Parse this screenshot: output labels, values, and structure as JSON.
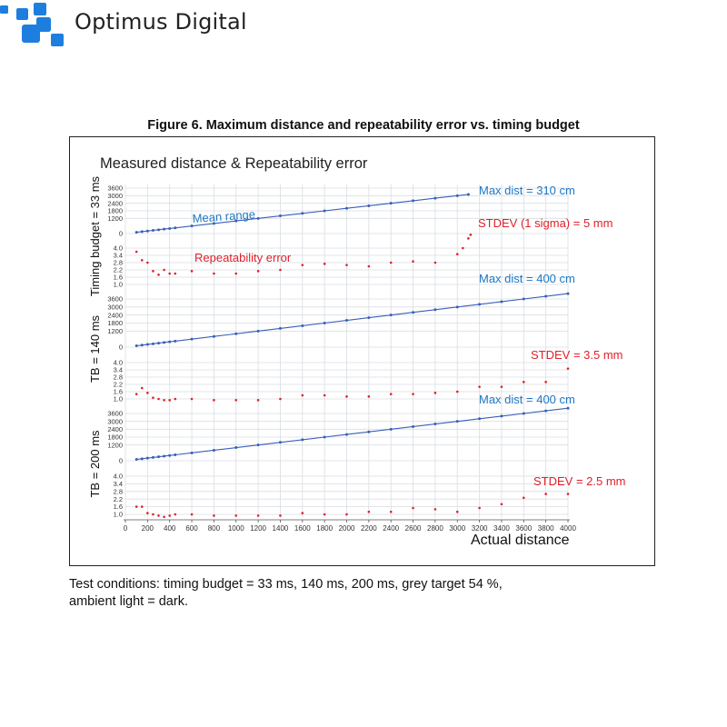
{
  "brand": {
    "name": "Optimus Digital",
    "color": "#1e7ee0"
  },
  "figure": {
    "caption": "Figure 6. Maximum distance and repeatability error vs. timing budget",
    "notes": [
      "Test conditions: timing budget = 33 ms, 140 ms, 200 ms, grey target 54 %,",
      "ambient light = dark."
    ]
  },
  "chart_data": {
    "type": "scatter",
    "title": "Measured distance & Repeatability error",
    "xlabel": "Actual distance",
    "x_ticks": [
      0,
      200,
      400,
      600,
      800,
      1000,
      1200,
      1400,
      1600,
      1800,
      2000,
      2200,
      2400,
      2600,
      2800,
      3000,
      3200,
      3400,
      3600,
      3800,
      4000
    ],
    "xlim": [
      0,
      4000
    ],
    "grid": true,
    "colors": {
      "mean": "#1f77c4",
      "error": "#e0202a",
      "line": "#3a5fb8"
    },
    "panels": [
      {
        "ylabel": "Timing budget = 33 ms",
        "range_ticks": [
          "3600",
          "3000",
          "2400",
          "1800",
          "1200",
          "0"
        ],
        "error_ticks": [
          "4.0",
          "3.4",
          "2.8",
          "2.2",
          "1.6",
          "1.0"
        ],
        "annotations": {
          "max": "Max dist = 310 cm",
          "stdev": "STDEV (1 sigma) = 5 mm",
          "mean_label": "Mean range",
          "error_label": "Repeatability error"
        },
        "mean_range": {
          "x": [
            100,
            150,
            200,
            250,
            300,
            350,
            400,
            450,
            600,
            800,
            1000,
            1200,
            1400,
            1600,
            1800,
            2000,
            2200,
            2400,
            2600,
            2800,
            3000,
            3100
          ],
          "y": [
            100,
            150,
            200,
            250,
            300,
            350,
            400,
            450,
            600,
            800,
            1000,
            1200,
            1400,
            1600,
            1800,
            2000,
            2200,
            2400,
            2600,
            2800,
            3000,
            3100
          ]
        },
        "repeatability_error": {
          "x": [
            100,
            150,
            200,
            250,
            300,
            350,
            400,
            450,
            600,
            800,
            1000,
            1200,
            1400,
            1600,
            1800,
            2000,
            2200,
            2400,
            2600,
            2800,
            3000,
            3050,
            3100,
            3120
          ],
          "y": [
            3.7,
            3.0,
            2.8,
            2.1,
            1.8,
            2.2,
            1.9,
            1.9,
            2.1,
            1.9,
            1.9,
            2.1,
            2.2,
            2.6,
            2.7,
            2.6,
            2.5,
            2.8,
            2.9,
            2.8,
            3.5,
            4.0,
            4.8,
            5.1
          ]
        }
      },
      {
        "ylabel": "TB = 140 ms",
        "range_ticks": [
          "3600",
          "3000",
          "2400",
          "1800",
          "1200",
          "0"
        ],
        "error_ticks": [
          "4.0",
          "3.4",
          "2.8",
          "2.2",
          "1.6",
          "1.0"
        ],
        "annotations": {
          "max": "Max dist = 400 cm",
          "stdev": "STDEV = 3.5 mm"
        },
        "mean_range": {
          "x": [
            100,
            150,
            200,
            250,
            300,
            350,
            400,
            450,
            600,
            800,
            1000,
            1200,
            1400,
            1600,
            1800,
            2000,
            2200,
            2400,
            2600,
            2800,
            3000,
            3200,
            3400,
            3600,
            3800,
            4000
          ],
          "y": [
            100,
            150,
            200,
            250,
            300,
            350,
            400,
            450,
            600,
            800,
            1000,
            1200,
            1400,
            1600,
            1800,
            2000,
            2200,
            2400,
            2600,
            2800,
            3000,
            3200,
            3400,
            3600,
            3800,
            4000
          ]
        },
        "repeatability_error": {
          "x": [
            100,
            150,
            200,
            250,
            300,
            350,
            400,
            450,
            600,
            800,
            1000,
            1200,
            1400,
            1600,
            1800,
            2000,
            2200,
            2400,
            2600,
            2800,
            3000,
            3200,
            3400,
            3600,
            3800,
            4000
          ],
          "y": [
            1.4,
            1.9,
            1.5,
            1.1,
            1.0,
            0.9,
            0.9,
            1.0,
            1.0,
            0.9,
            0.9,
            0.9,
            1.0,
            1.3,
            1.3,
            1.2,
            1.2,
            1.4,
            1.4,
            1.5,
            1.6,
            2.0,
            2.0,
            2.4,
            2.4,
            3.5
          ]
        }
      },
      {
        "ylabel": "TB = 200 ms",
        "range_ticks": [
          "3600",
          "3000",
          "2400",
          "1800",
          "1200",
          "0"
        ],
        "error_ticks": [
          "4.0",
          "3.4",
          "2.8",
          "2.2",
          "1.6",
          "1.0"
        ],
        "annotations": {
          "max": "Max dist = 400 cm",
          "stdev": "STDEV =  2.5 mm"
        },
        "mean_range": {
          "x": [
            100,
            150,
            200,
            250,
            300,
            350,
            400,
            450,
            600,
            800,
            1000,
            1200,
            1400,
            1600,
            1800,
            2000,
            2200,
            2400,
            2600,
            2800,
            3000,
            3200,
            3400,
            3600,
            3800,
            4000
          ],
          "y": [
            100,
            150,
            200,
            250,
            300,
            350,
            400,
            450,
            600,
            800,
            1000,
            1200,
            1400,
            1600,
            1800,
            2000,
            2200,
            2400,
            2600,
            2800,
            3000,
            3200,
            3400,
            3600,
            3800,
            4000
          ]
        },
        "repeatability_error": {
          "x": [
            100,
            150,
            200,
            250,
            300,
            350,
            400,
            450,
            600,
            800,
            1000,
            1200,
            1400,
            1600,
            1800,
            2000,
            2200,
            2400,
            2600,
            2800,
            3000,
            3200,
            3400,
            3600,
            3800,
            4000
          ],
          "y": [
            1.6,
            1.6,
            1.1,
            1.0,
            0.9,
            0.8,
            0.9,
            1.0,
            1.0,
            0.9,
            0.9,
            0.9,
            0.9,
            1.1,
            1.0,
            1.0,
            1.2,
            1.2,
            1.5,
            1.4,
            1.2,
            1.5,
            1.8,
            2.3,
            2.6,
            2.6
          ]
        }
      }
    ]
  }
}
